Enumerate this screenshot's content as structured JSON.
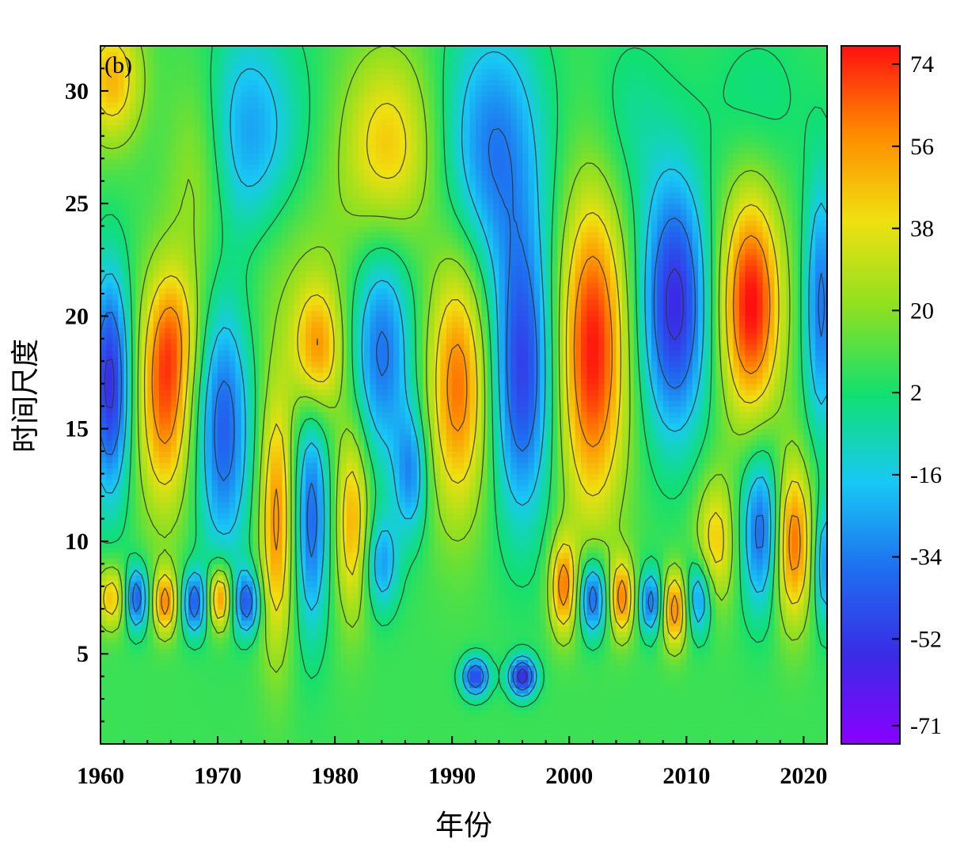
{
  "chart_data": {
    "type": "heatmap",
    "panel_label": "(b)",
    "xlabel": "年份",
    "ylabel": "时间尺度",
    "xlim": [
      1960,
      2022
    ],
    "ylim": [
      1,
      32
    ],
    "x_ticks": [
      1960,
      1970,
      1980,
      1990,
      2000,
      2010,
      2020
    ],
    "y_ticks": [
      5,
      10,
      15,
      20,
      25,
      30
    ],
    "colorbar": {
      "range": [
        -75,
        78
      ],
      "ticks": [
        74,
        56,
        38,
        20,
        2,
        -16,
        -34,
        -52,
        -71
      ],
      "colors": [
        "#8a00ff",
        "#3a2be6",
        "#1e6ef0",
        "#18c8f5",
        "#10e070",
        "#8de020",
        "#f0e010",
        "#ff8a00",
        "#ff1010"
      ]
    },
    "contour_levels": [
      -52,
      -34,
      -16,
      2,
      20,
      38,
      56
    ],
    "features": [
      {
        "x": 1965.5,
        "y": 16.5,
        "sx": 1.6,
        "sy": 3.5,
        "v": 58
      },
      {
        "x": 1966.5,
        "y": 19.5,
        "sx": 1.5,
        "sy": 2.0,
        "v": 20
      },
      {
        "x": 1960.8,
        "y": 17.0,
        "sx": 1.2,
        "sy": 3.5,
        "v": -65
      },
      {
        "x": 1961.0,
        "y": 7.5,
        "sx": 1.0,
        "sy": 1.0,
        "v": 42
      },
      {
        "x": 1961.0,
        "y": 30.5,
        "sx": 1.8,
        "sy": 2.0,
        "v": 42
      },
      {
        "x": 1963.0,
        "y": 7.5,
        "sx": 0.7,
        "sy": 1.0,
        "v": -58
      },
      {
        "x": 1965.5,
        "y": 7.3,
        "sx": 0.7,
        "sy": 1.0,
        "v": 55
      },
      {
        "x": 1968.0,
        "y": 7.3,
        "sx": 0.7,
        "sy": 1.0,
        "v": -52
      },
      {
        "x": 1970.2,
        "y": 7.5,
        "sx": 0.7,
        "sy": 1.0,
        "v": 58
      },
      {
        "x": 1972.5,
        "y": 7.3,
        "sx": 0.8,
        "sy": 1.0,
        "v": -52
      },
      {
        "x": 1970.5,
        "y": 15.0,
        "sx": 1.6,
        "sy": 4.0,
        "v": -50
      },
      {
        "x": 1968.5,
        "y": 27.0,
        "sx": 2.0,
        "sy": 3.5,
        "v": 30
      },
      {
        "x": 1972.0,
        "y": 28.0,
        "sx": 3.5,
        "sy": 3.5,
        "v": -38
      },
      {
        "x": 1976.5,
        "y": 22.5,
        "sx": 3.5,
        "sy": 3.0,
        "v": 12
      },
      {
        "x": 1978.5,
        "y": 18.5,
        "sx": 1.5,
        "sy": 2.0,
        "v": 48
      },
      {
        "x": 1975.0,
        "y": 11.0,
        "sx": 1.0,
        "sy": 4.0,
        "v": 52
      },
      {
        "x": 1978.0,
        "y": 11.0,
        "sx": 1.0,
        "sy": 3.5,
        "v": -48
      },
      {
        "x": 1981.5,
        "y": 11.0,
        "sx": 1.0,
        "sy": 3.0,
        "v": 45
      },
      {
        "x": 1984.0,
        "y": 18.5,
        "sx": 1.8,
        "sy": 3.5,
        "v": -45
      },
      {
        "x": 1984.5,
        "y": 27.5,
        "sx": 2.8,
        "sy": 3.0,
        "v": 38
      },
      {
        "x": 1986.5,
        "y": 13.0,
        "sx": 1.0,
        "sy": 2.0,
        "v": -38
      },
      {
        "x": 1984.0,
        "y": 9.0,
        "sx": 1.0,
        "sy": 1.5,
        "v": -35
      },
      {
        "x": 1990.5,
        "y": 17.0,
        "sx": 1.8,
        "sy": 4.0,
        "v": 56
      },
      {
        "x": 1993.5,
        "y": 27.5,
        "sx": 3.0,
        "sy": 4.0,
        "v": -42
      },
      {
        "x": 1996.0,
        "y": 17.5,
        "sx": 1.8,
        "sy": 4.5,
        "v": -58
      },
      {
        "x": 1992.0,
        "y": 4.0,
        "sx": 0.8,
        "sy": 0.6,
        "v": -60
      },
      {
        "x": 1996.0,
        "y": 4.0,
        "sx": 0.8,
        "sy": 0.6,
        "v": -70
      },
      {
        "x": 1999.5,
        "y": 8.0,
        "sx": 0.8,
        "sy": 1.5,
        "v": 55
      },
      {
        "x": 2002.0,
        "y": 18.5,
        "sx": 2.0,
        "sy": 5.0,
        "v": 70
      },
      {
        "x": 2002.0,
        "y": 7.5,
        "sx": 0.8,
        "sy": 1.2,
        "v": -55
      },
      {
        "x": 2004.5,
        "y": 7.5,
        "sx": 0.7,
        "sy": 1.2,
        "v": 55
      },
      {
        "x": 2007.0,
        "y": 7.3,
        "sx": 0.7,
        "sy": 1.0,
        "v": -50
      },
      {
        "x": 2009.0,
        "y": 20.5,
        "sx": 2.0,
        "sy": 4.0,
        "v": -65
      },
      {
        "x": 2009.0,
        "y": 7.0,
        "sx": 0.8,
        "sy": 1.2,
        "v": 58
      },
      {
        "x": 2011.0,
        "y": 7.5,
        "sx": 0.8,
        "sy": 1.2,
        "v": -45
      },
      {
        "x": 2012.5,
        "y": 10.0,
        "sx": 1.2,
        "sy": 2.0,
        "v": 38
      },
      {
        "x": 2015.5,
        "y": 20.5,
        "sx": 1.8,
        "sy": 3.5,
        "v": 72
      },
      {
        "x": 2016.5,
        "y": 10.5,
        "sx": 1.3,
        "sy": 2.5,
        "v": -52
      },
      {
        "x": 2019.0,
        "y": 10.0,
        "sx": 1.2,
        "sy": 2.5,
        "v": 62
      },
      {
        "x": 2021.5,
        "y": 20.5,
        "sx": 1.0,
        "sy": 4.0,
        "v": -45
      },
      {
        "x": 2021.8,
        "y": 9.0,
        "sx": 0.7,
        "sy": 2.0,
        "v": -40
      },
      {
        "x": 2016.0,
        "y": 29.5,
        "sx": 3.0,
        "sy": 2.5,
        "v": -10
      },
      {
        "x": 2005.0,
        "y": 28.5,
        "sx": 2.5,
        "sy": 3.0,
        "v": -12
      }
    ]
  }
}
